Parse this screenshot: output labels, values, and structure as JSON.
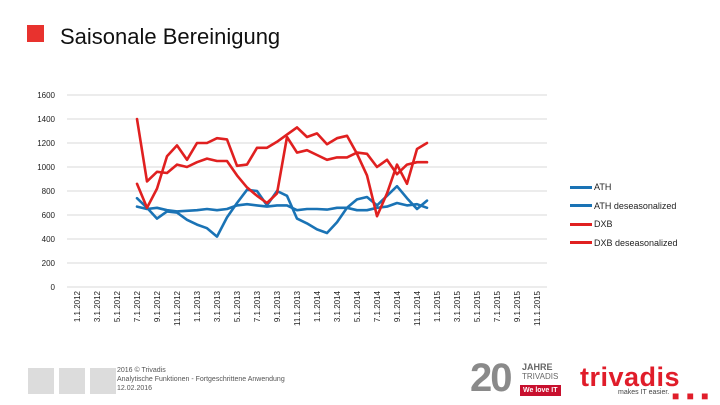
{
  "title": "Saisonale Bereinigung",
  "colors": {
    "accent": "#e8322e",
    "ath": "#1a73b5",
    "dxb": "#e02020"
  },
  "chart_data": {
    "type": "line",
    "title": "Saisonale Bereinigung",
    "ylim": [
      0,
      1600
    ],
    "yticks": [
      0,
      200,
      400,
      600,
      800,
      1000,
      1200,
      1400,
      1600
    ],
    "categories": [
      "1.1.2012",
      "3.1.2012",
      "5.1.2012",
      "7.1.2012",
      "9.1.2012",
      "11.1.2012",
      "1.1.2013",
      "3.1.2013",
      "5.1.2013",
      "7.1.2013",
      "9.1.2013",
      "11.1.2013",
      "1.1.2014",
      "3.1.2014",
      "5.1.2014",
      "7.1.2014",
      "9.1.2014",
      "11.1.2014",
      "1.1.2015",
      "3.1.2015",
      "5.1.2015",
      "7.1.2015",
      "9.1.2015",
      "11.1.2015"
    ],
    "series": [
      {
        "name": "ATH",
        "color": "#1a73b5",
        "x": [
          3,
          3.5,
          4,
          4.5,
          5,
          5.5,
          6,
          6.5,
          7,
          7.5,
          8,
          8.5,
          9,
          9.5,
          10,
          10.5,
          11,
          11.5,
          12,
          12.5,
          13,
          13.5,
          14,
          14.5,
          15,
          15.5,
          16,
          16.5,
          17,
          17.5
        ],
        "values": [
          740,
          660,
          570,
          630,
          620,
          560,
          520,
          490,
          420,
          580,
          700,
          810,
          800,
          680,
          800,
          760,
          570,
          530,
          480,
          450,
          540,
          660,
          730,
          750,
          680,
          760,
          840,
          740,
          650,
          720
        ]
      },
      {
        "name": "ATH deseasonalized",
        "color": "#1a73b5",
        "x": [
          3,
          3.5,
          4,
          4.5,
          5,
          5.5,
          6,
          6.5,
          7,
          7.5,
          8,
          8.5,
          9,
          9.5,
          10,
          10.5,
          11,
          11.5,
          12,
          12.5,
          13,
          13.5,
          14,
          14.5,
          15,
          15.5,
          16,
          16.5,
          17,
          17.5
        ],
        "values": [
          670,
          650,
          660,
          640,
          630,
          635,
          640,
          650,
          640,
          650,
          680,
          690,
          680,
          670,
          680,
          680,
          640,
          650,
          650,
          645,
          660,
          660,
          640,
          640,
          660,
          670,
          700,
          680,
          690,
          660
        ]
      },
      {
        "name": "DXB",
        "color": "#e02020",
        "x": [
          3,
          3.5,
          4,
          4.5,
          5,
          5.5,
          6,
          6.5,
          7,
          7.5,
          8,
          8.5,
          9,
          9.5,
          10,
          10.5,
          11,
          11.5,
          12,
          12.5,
          13,
          13.5,
          14,
          14.5,
          15,
          15.5,
          16,
          16.5,
          17,
          17.5
        ],
        "values": [
          860,
          660,
          820,
          1090,
          1180,
          1060,
          1200,
          1200,
          1240,
          1230,
          1010,
          1020,
          1160,
          1160,
          1210,
          1270,
          1330,
          1250,
          1280,
          1190,
          1240,
          1260,
          1110,
          930,
          590,
          780,
          1020,
          860,
          1150,
          1200
        ]
      },
      {
        "name": "DXB deseasonalized",
        "color": "#e02020",
        "x": [
          3,
          3.5,
          4,
          4.5,
          5,
          5.5,
          6,
          6.5,
          7,
          7.5,
          8,
          8.5,
          9,
          9.5,
          10,
          10.5,
          11,
          11.5,
          12,
          12.5,
          13,
          13.5,
          14,
          14.5,
          15,
          15.5,
          16,
          16.5,
          17,
          17.5
        ],
        "values": [
          1400,
          880,
          960,
          950,
          1020,
          1000,
          1040,
          1070,
          1050,
          1050,
          930,
          830,
          760,
          700,
          780,
          1250,
          1120,
          1140,
          1100,
          1060,
          1080,
          1080,
          1120,
          1110,
          1000,
          1060,
          940,
          1020,
          1040,
          1040
        ]
      }
    ],
    "legend_position": "right",
    "grid": true
  },
  "footer": {
    "line1": "2016 © Trivadis",
    "line2": "Analytische Funktionen - Fortgeschrittene Anwendung",
    "line3": "12.02.2016"
  },
  "anniversary": {
    "number": "20",
    "word": "JAHRE",
    "company": "TRIVADIS",
    "tag": "We love IT"
  },
  "brand": {
    "name": "trivadis",
    "tagline": "makes IT easier.",
    "dots": "■ ■ ■"
  }
}
